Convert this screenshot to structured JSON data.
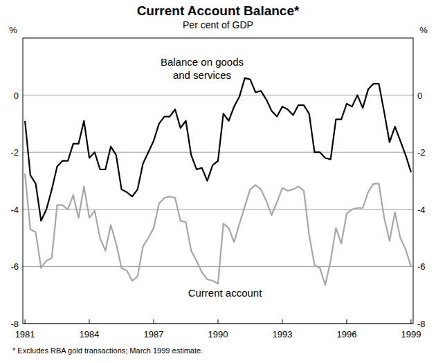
{
  "chart_data": {
    "type": "line",
    "title": "Current Account Balance*",
    "subtitle": "Per cent of GDP",
    "y_unit_label": "%",
    "footnote": "* Excludes RBA gold transactions; March 1999 estimate.",
    "x": [
      1981,
      1981.25,
      1981.5,
      1981.75,
      1982,
      1982.25,
      1982.5,
      1982.75,
      1983,
      1983.25,
      1983.5,
      1983.75,
      1984,
      1984.25,
      1984.5,
      1984.75,
      1985,
      1985.25,
      1985.5,
      1985.75,
      1986,
      1986.25,
      1986.5,
      1986.75,
      1987,
      1987.25,
      1987.5,
      1987.75,
      1988,
      1988.25,
      1988.5,
      1988.75,
      1989,
      1989.25,
      1989.5,
      1989.75,
      1990,
      1990.25,
      1990.5,
      1990.75,
      1991,
      1991.25,
      1991.5,
      1991.75,
      1992,
      1992.25,
      1992.5,
      1992.75,
      1993,
      1993.25,
      1993.5,
      1993.75,
      1994,
      1994.25,
      1994.5,
      1994.75,
      1995,
      1995.25,
      1995.5,
      1995.75,
      1996,
      1996.25,
      1996.5,
      1996.75,
      1997,
      1997.25,
      1997.5,
      1997.75,
      1998,
      1998.25,
      1998.5,
      1998.75,
      1999
    ],
    "series": [
      {
        "name": "Balance on goods and services",
        "color": "#000000",
        "values": [
          -0.9,
          -2.8,
          -3.1,
          -4.4,
          -4.0,
          -3.3,
          -2.5,
          -2.3,
          -2.3,
          -1.7,
          -1.7,
          -0.9,
          -2.2,
          -2.0,
          -2.6,
          -2.6,
          -1.8,
          -2.1,
          -3.3,
          -3.4,
          -3.55,
          -3.3,
          -2.4,
          -2.0,
          -1.6,
          -1.0,
          -0.75,
          -0.75,
          -0.5,
          -1.15,
          -0.9,
          -2.1,
          -2.6,
          -2.55,
          -3.0,
          -2.45,
          -2.3,
          -0.65,
          -0.9,
          -0.4,
          -0.05,
          0.6,
          0.55,
          0.1,
          0.15,
          -0.15,
          -0.55,
          -0.75,
          -0.4,
          -0.5,
          -0.7,
          -0.35,
          -0.35,
          -0.65,
          -2.0,
          -2.0,
          -2.2,
          -2.25,
          -0.85,
          -0.85,
          -0.3,
          -0.4,
          0.0,
          -0.45,
          0.2,
          0.4,
          0.4,
          -0.6,
          -1.65,
          -1.1,
          -1.6,
          -2.1,
          -2.7
        ]
      },
      {
        "name": "Current account",
        "color": "#a6a6a6",
        "values": [
          -2.75,
          -4.7,
          -4.8,
          -6.05,
          -5.8,
          -5.7,
          -3.85,
          -3.85,
          -4.0,
          -3.5,
          -4.3,
          -3.2,
          -4.3,
          -4.05,
          -5.0,
          -5.45,
          -4.55,
          -5.2,
          -6.05,
          -6.15,
          -6.5,
          -6.35,
          -5.3,
          -5.0,
          -4.65,
          -3.8,
          -3.6,
          -3.55,
          -3.6,
          -4.4,
          -4.45,
          -5.45,
          -5.8,
          -6.2,
          -6.45,
          -6.5,
          -6.6,
          -4.5,
          -4.65,
          -5.15,
          -4.5,
          -3.9,
          -3.3,
          -3.15,
          -3.3,
          -3.7,
          -4.2,
          -3.75,
          -3.25,
          -3.35,
          -3.3,
          -3.2,
          -3.35,
          -4.9,
          -5.95,
          -6.05,
          -6.65,
          -5.8,
          -4.65,
          -5.2,
          -4.15,
          -4.0,
          -3.95,
          -3.95,
          -3.4,
          -3.1,
          -3.1,
          -4.3,
          -5.1,
          -4.1,
          -5.0,
          -5.4,
          -6.0
        ]
      }
    ],
    "xlim": [
      1980.9,
      1999.1
    ],
    "xticks": [
      1981,
      1984,
      1987,
      1990,
      1993,
      1996,
      1999
    ],
    "ylim": [
      -8,
      2
    ],
    "yticks": [
      -8,
      -6,
      -4,
      -2,
      0
    ],
    "grid": true
  }
}
